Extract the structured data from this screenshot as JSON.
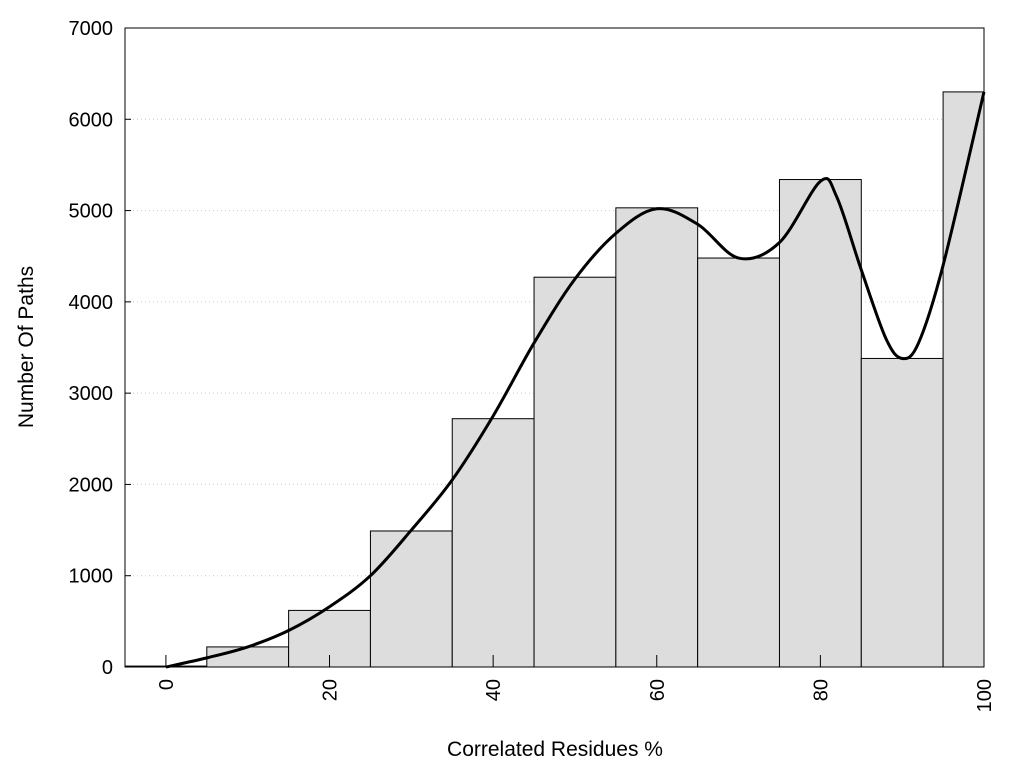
{
  "chart_data": {
    "type": "bar",
    "title": "",
    "xlabel": "Correlated Residues %",
    "ylabel": "Number Of Paths",
    "xlim": [
      -5,
      100
    ],
    "ylim": [
      0,
      7000
    ],
    "xticks": [
      0,
      20,
      40,
      60,
      80,
      100
    ],
    "yticks": [
      0,
      1000,
      2000,
      3000,
      4000,
      5000,
      6000,
      7000
    ],
    "grid": "horizontal-dotted",
    "bar_color": "#dddddd",
    "bars": [
      {
        "center": 0,
        "width": 10,
        "value": 10
      },
      {
        "center": 10,
        "width": 10,
        "value": 220
      },
      {
        "center": 20,
        "width": 10,
        "value": 620
      },
      {
        "center": 30,
        "width": 10,
        "value": 1490
      },
      {
        "center": 40,
        "width": 10,
        "value": 2720
      },
      {
        "center": 50,
        "width": 10,
        "value": 4270
      },
      {
        "center": 60,
        "width": 10,
        "value": 5030
      },
      {
        "center": 70,
        "width": 10,
        "value": 4480
      },
      {
        "center": 80,
        "width": 10,
        "value": 5340
      },
      {
        "center": 90,
        "width": 10,
        "value": 3380
      },
      {
        "center": 97.5,
        "width": 5,
        "value": 6300
      }
    ],
    "curve": {
      "x": [
        0,
        5,
        10,
        15,
        20,
        25,
        30,
        35,
        40,
        45,
        50,
        55,
        60,
        65,
        70,
        75,
        80,
        82,
        85,
        88,
        90,
        92,
        95,
        100
      ],
      "y": [
        0,
        100,
        220,
        400,
        660,
        1000,
        1500,
        2050,
        2750,
        3550,
        4250,
        4750,
        5020,
        4850,
        4480,
        4650,
        5320,
        5150,
        4350,
        3600,
        3380,
        3550,
        4400,
        6300
      ]
    }
  }
}
